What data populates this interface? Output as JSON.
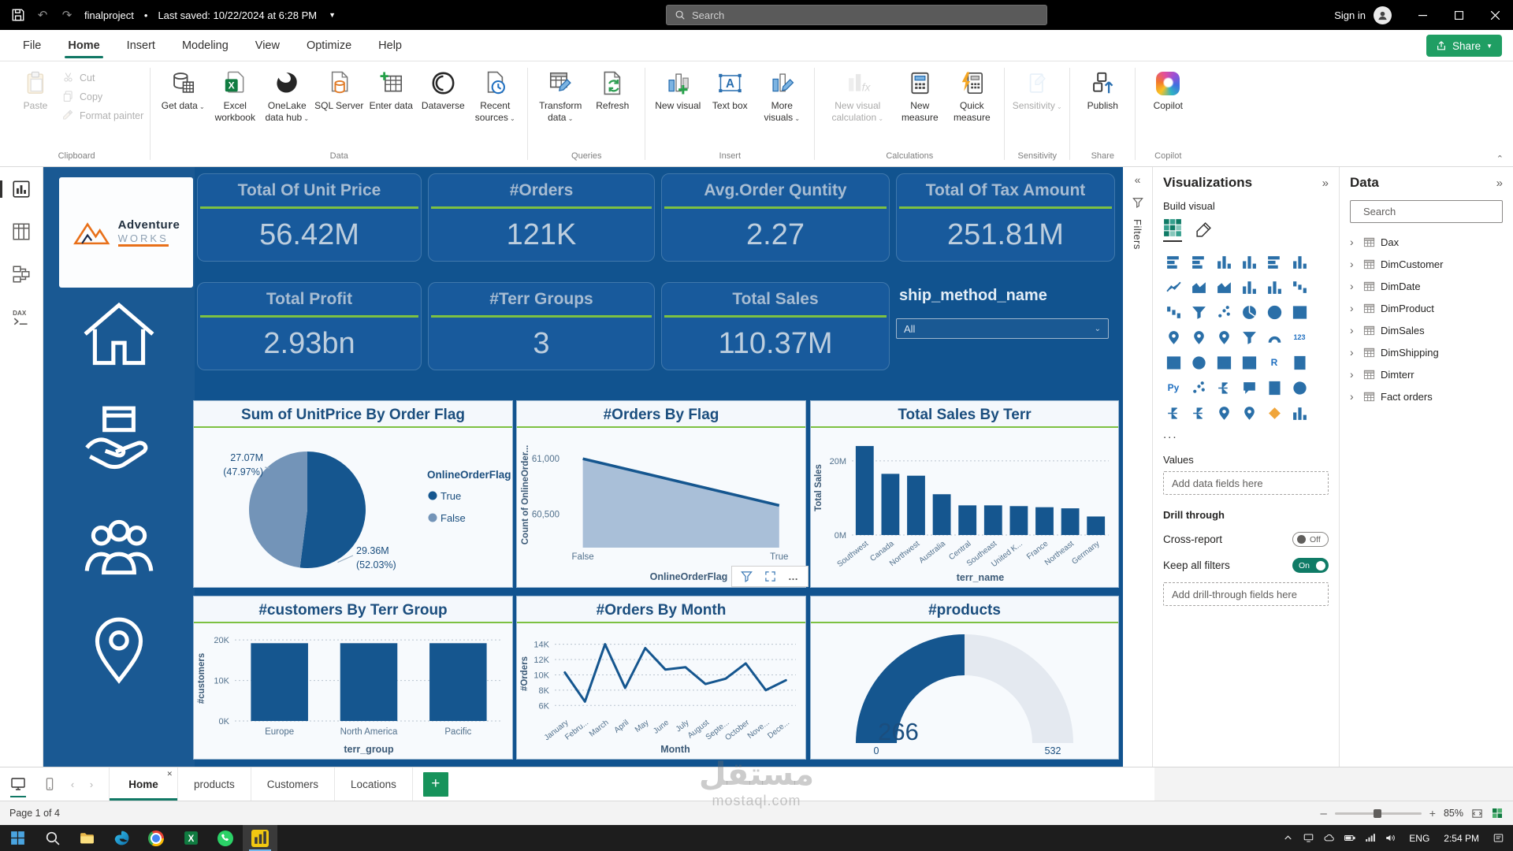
{
  "titlebar": {
    "project_name": "finalproject",
    "separator": "•",
    "saved_text": "Last saved: 10/22/2024 at 6:28 PM",
    "search_placeholder": "Search",
    "sign_in_label": "Sign in"
  },
  "menubar": {
    "tabs": [
      {
        "label": "File"
      },
      {
        "label": "Home",
        "active": true
      },
      {
        "label": "Insert"
      },
      {
        "label": "Modeling"
      },
      {
        "label": "View"
      },
      {
        "label": "Optimize"
      },
      {
        "label": "Help"
      }
    ],
    "share_label": "Share"
  },
  "ribbon": {
    "groups": [
      {
        "label": "Clipboard",
        "layout": "clipboard",
        "big": {
          "label": "Paste",
          "icon": "paste",
          "disabled": true
        },
        "small": [
          {
            "label": "Cut",
            "icon": "cut",
            "disabled": true
          },
          {
            "label": "Copy",
            "icon": "copy",
            "disabled": true
          },
          {
            "label": "Format painter",
            "icon": "format-painter",
            "disabled": true
          }
        ]
      },
      {
        "label": "Data",
        "buttons": [
          {
            "label": "Get data",
            "icon": "get-data",
            "chevron": true
          },
          {
            "label": "Excel workbook",
            "icon": "excel-workbook"
          },
          {
            "label": "OneLake data hub",
            "icon": "onelake-data-hub",
            "chevron": true
          },
          {
            "label": "SQL Server",
            "icon": "sql-server"
          },
          {
            "label": "Enter data",
            "icon": "enter-data"
          },
          {
            "label": "Dataverse",
            "icon": "dataverse"
          },
          {
            "label": "Recent sources",
            "icon": "recent-sources",
            "chevron": true
          }
        ]
      },
      {
        "label": "Queries",
        "buttons": [
          {
            "label": "Transform data",
            "icon": "transform-data",
            "chevron": true
          },
          {
            "label": "Refresh",
            "icon": "refresh"
          }
        ]
      },
      {
        "label": "Insert",
        "buttons": [
          {
            "label": "New visual",
            "icon": "new-visual"
          },
          {
            "label": "Text box",
            "icon": "text-box"
          },
          {
            "label": "More visuals",
            "icon": "more-visuals",
            "chevron": true
          }
        ]
      },
      {
        "label": "Calculations",
        "buttons": [
          {
            "label": "New visual calculation",
            "icon": "new-visual-calculation",
            "chevron": true,
            "disabled": true,
            "wide": true
          },
          {
            "label": "New measure",
            "icon": "new-measure"
          },
          {
            "label": "Quick measure",
            "icon": "quick-measure"
          }
        ]
      },
      {
        "label": "Sensitivity",
        "buttons": [
          {
            "label": "Sensitivity",
            "icon": "sensitivity",
            "chevron": true,
            "disabled": true
          }
        ]
      },
      {
        "label": "Share",
        "buttons": [
          {
            "label": "Publish",
            "icon": "publish"
          }
        ]
      },
      {
        "label": "Copilot",
        "buttons": [
          {
            "label": "Copilot",
            "icon": "copilot"
          }
        ]
      }
    ]
  },
  "left_rail": [
    {
      "name": "report-view",
      "active": true
    },
    {
      "name": "table-view"
    },
    {
      "name": "model-view"
    },
    {
      "name": "dax-query-view"
    }
  ],
  "report": {
    "logo": {
      "brand_top": "Adventure",
      "brand_bottom": "WORKS"
    },
    "nav": [
      {
        "icon": "home"
      },
      {
        "icon": "products"
      },
      {
        "icon": "customers"
      },
      {
        "icon": "locations"
      }
    ],
    "kpi_row1": [
      {
        "title": "Total Of Unit Price",
        "value": "56.42M"
      },
      {
        "title": "#Orders",
        "value": "121K"
      },
      {
        "title": "Avg.Order Quntity",
        "value": "2.27"
      },
      {
        "title": "Total Of Tax Amount",
        "value": "251.81M"
      }
    ],
    "kpi_row2": [
      {
        "title": "Total Profit",
        "value": "2.93bn"
      },
      {
        "title": "#Terr Groups",
        "value": "3"
      },
      {
        "title": "Total Sales",
        "value": "110.37M"
      }
    ],
    "slicer": {
      "title": "ship_method_name",
      "value": "All"
    }
  },
  "chart_data": [
    {
      "type": "pie",
      "title": "Sum of UnitPrice By Order Flag",
      "legend_title": "OnlineOrderFlag",
      "slices": [
        {
          "label": "True",
          "value": 29.36,
          "display": "29.36M",
          "pct_display": "(52.03%)"
        },
        {
          "label": "False",
          "value": 27.07,
          "display": "27.07M",
          "pct_display": "(47.97%)"
        }
      ]
    },
    {
      "type": "area",
      "title": "#Orders By Flag",
      "ylabel": "Count of OnlineOrder...",
      "xlabel": "OnlineOrderFlag",
      "categories": [
        "False",
        "True"
      ],
      "values": [
        61000,
        60580
      ],
      "yticks": [
        61000,
        60500
      ],
      "ytick_labels": [
        "61,000",
        "60,500"
      ],
      "ylim": [
        60200,
        61150
      ]
    },
    {
      "type": "bar",
      "title": "Total Sales By Terr",
      "ylabel": "Total Sales",
      "xlabel": "terr_name",
      "categories": [
        "Southwest",
        "Canada",
        "Northwest",
        "Australia",
        "Central",
        "Southeast",
        "United K...",
        "France",
        "Northeast",
        "Germany"
      ],
      "values": [
        24,
        16.5,
        16,
        11,
        8,
        8,
        7.8,
        7.5,
        7.2,
        5
      ],
      "yticks": [
        0,
        20
      ],
      "ytick_labels": [
        "0M",
        "20M"
      ],
      "ylim": [
        0,
        25.5
      ],
      "rotate_labels": true
    },
    {
      "type": "bar",
      "title": "#customers By Terr Group",
      "ylabel": "#customers",
      "xlabel": "terr_group",
      "categories": [
        "Europe",
        "North America",
        "Pacific"
      ],
      "values": [
        19.2,
        19.2,
        19.2
      ],
      "yticks": [
        0,
        10,
        20
      ],
      "ytick_labels": [
        "0K",
        "10K",
        "20K"
      ],
      "ylim": [
        0,
        21
      ],
      "rotate_labels": false
    },
    {
      "type": "line",
      "title": "#Orders By Month",
      "ylabel": "#Orders",
      "xlabel": "Month",
      "categories": [
        "January",
        "Febru...",
        "March",
        "April",
        "May",
        "June",
        "July",
        "August",
        "Septe...",
        "October",
        "Nove...",
        "Dece..."
      ],
      "values": [
        10.3,
        6.5,
        14,
        8.3,
        13.5,
        10.7,
        11,
        8.8,
        9.5,
        11.5,
        8,
        9.3
      ],
      "yticks": [
        6,
        8,
        10,
        12,
        14
      ],
      "ytick_labels": [
        "6K",
        "8K",
        "10K",
        "12K",
        "14K"
      ],
      "ylim": [
        5,
        15.3
      ],
      "rotate_labels": true
    },
    {
      "type": "gauge",
      "title": "#products",
      "value": 266,
      "min": 0,
      "max": 532,
      "value_display": "266",
      "min_display": "0",
      "max_display": "532"
    }
  ],
  "filters_pane": {
    "title": "Filters"
  },
  "viz_pane": {
    "title": "Visualizations",
    "build_visual_label": "Build visual",
    "more_label": "...",
    "values_label": "Values",
    "values_placeholder": "Add data fields here",
    "drill_through_label": "Drill through",
    "cross_report_label": "Cross-report",
    "cross_report_state": "Off",
    "keep_filters_label": "Keep all filters",
    "keep_filters_state": "On",
    "drill_placeholder": "Add drill-through fields here",
    "icons": [
      "stacked-bar-chart",
      "clustered-bar-chart",
      "stacked-column-chart",
      "clustered-column-chart",
      "100-stacked-bar-chart",
      "100-stacked-column-chart",
      "line-chart",
      "area-chart",
      "stacked-area-chart",
      "line-stacked-column-chart",
      "line-clustered-column-chart",
      "ribbon-chart",
      "waterfall-chart",
      "funnel-chart",
      "scatter-chart",
      "pie-chart",
      "donut-chart",
      "treemap",
      "map",
      "filled-map",
      "shape-map",
      "slicer",
      "gauge",
      "card-123",
      "multi-row-card",
      "kpi",
      "table",
      "matrix",
      "r-script-visual",
      "paginated-report",
      "python-visual",
      "key-influencers",
      "decomposition-tree",
      "qa-visual",
      "smart-narrative",
      "goals",
      "power-apps",
      "power-automate",
      "azure-map",
      "arcgis-map",
      "diamond-visual",
      "more-visual"
    ]
  },
  "data_pane": {
    "title": "Data",
    "search_placeholder": "Search",
    "tables": [
      {
        "name": "Dax"
      },
      {
        "name": "DimCustomer"
      },
      {
        "name": "DimDate"
      },
      {
        "name": "DimProduct"
      },
      {
        "name": "DimSales"
      },
      {
        "name": "DimShipping"
      },
      {
        "name": "Dimterr"
      },
      {
        "name": "Fact orders"
      }
    ]
  },
  "pages_bar": {
    "tabs": [
      {
        "label": "Home",
        "active": true,
        "closable": true
      },
      {
        "label": "products"
      },
      {
        "label": "Customers"
      },
      {
        "label": "Locations"
      }
    ]
  },
  "status_bar": {
    "page_indicator": "Page 1 of 4",
    "zoom_level": "85%"
  },
  "watermark": {
    "line1": "مستقل",
    "line2": "mostaql.com"
  },
  "taskbar": {
    "apps": [
      {
        "icon": "start"
      },
      {
        "icon": "search"
      },
      {
        "icon": "file-explorer"
      },
      {
        "icon": "edge"
      },
      {
        "icon": "chrome"
      },
      {
        "icon": "excel"
      },
      {
        "icon": "whatsapp"
      },
      {
        "icon": "power-bi",
        "active": true
      }
    ],
    "tray_icons": [
      "chevron-up",
      "desktop",
      "cloud",
      "battery",
      "network",
      "volume"
    ],
    "language": "ENG",
    "time": "2:54 PM"
  },
  "colors": {
    "page_blue": "#11538f",
    "kpi_card_blue": "#185a9c",
    "green_accent": "#7dc142",
    "data_dark_blue": "#15568f",
    "data_light_blue": "#7394b8",
    "teal": "#117865",
    "share_green": "#1f9e63"
  }
}
